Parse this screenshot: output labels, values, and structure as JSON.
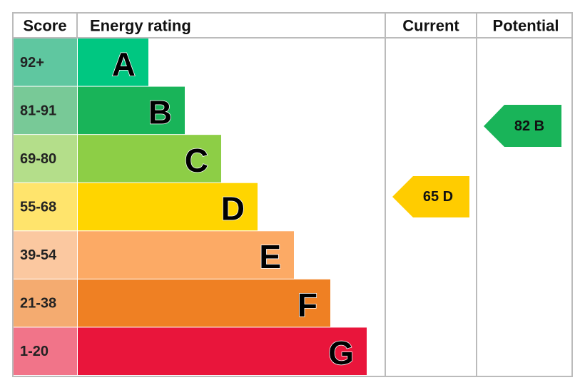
{
  "header": {
    "score": "Score",
    "rating": "Energy rating",
    "current": "Current",
    "potential": "Potential"
  },
  "bands": [
    {
      "score": "92+",
      "letter": "A",
      "color": "#00c781",
      "score_color": "#5fc7a0"
    },
    {
      "score": "81-91",
      "letter": "B",
      "color": "#19b459",
      "score_color": "#78c997"
    },
    {
      "score": "69-80",
      "letter": "C",
      "color": "#8dce46",
      "score_color": "#b4de8a"
    },
    {
      "score": "55-68",
      "letter": "D",
      "color": "#ffd500",
      "score_color": "#ffe46c"
    },
    {
      "score": "39-54",
      "letter": "E",
      "color": "#fcaa65",
      "score_color": "#fbc8a0"
    },
    {
      "score": "21-38",
      "letter": "F",
      "color": "#ef8023",
      "score_color": "#f4ab70"
    },
    {
      "score": "1-20",
      "letter": "G",
      "color": "#e9153b",
      "score_color": "#f17489"
    }
  ],
  "current": {
    "label": "65 D",
    "color": "#ffcc00"
  },
  "potential": {
    "label": "82 B",
    "color": "#19b459"
  }
}
